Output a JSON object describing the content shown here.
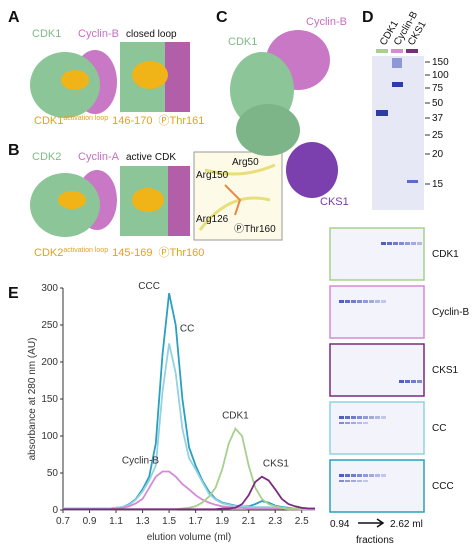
{
  "figure": {
    "panel_a": {
      "label": "A",
      "cdk": "CDK1",
      "cyclin": "Cyclin-B",
      "inset_title": "closed loop",
      "loop_protein": "CDK1",
      "loop_superscript": "activation loop",
      "loop_range": "146-170",
      "phosphosite": "ⓅThr161"
    },
    "panel_b": {
      "label": "B",
      "cdk": "CDK2",
      "cyclin": "Cyclin-A",
      "inset_title": "active CDK",
      "loop_protein": "CDK2",
      "loop_superscript": "activation loop",
      "loop_range": "145-169",
      "phosphosite": "ⓅThr160",
      "detail_labels": [
        "Arg50",
        "Arg150",
        "Arg126",
        "ⓅThr160"
      ]
    },
    "panel_c": {
      "label": "C",
      "cdk": "CDK1",
      "cyclin": "Cyclin-B",
      "cks": "CKS1"
    },
    "panel_d": {
      "label": "D",
      "lanes": [
        "CDK1",
        "Cyclin-B",
        "CKS1"
      ],
      "markers": [
        150,
        100,
        75,
        50,
        37,
        25,
        20,
        15
      ]
    },
    "panel_e": {
      "label": "E",
      "gel_labels": [
        "CDK1",
        "Cyclin-B",
        "CKS1",
        "CC",
        "CCC"
      ],
      "fraction_start": "0.94",
      "fraction_end": "2.62 ml",
      "fraction_axis": "fractions"
    }
  },
  "chart_data": {
    "type": "line",
    "xlabel": "elution volume (ml)",
    "ylabel": "absorbance at 280 nm (AU)",
    "x": [
      0.7,
      0.75,
      0.8,
      0.85,
      0.9,
      0.95,
      1.0,
      1.05,
      1.1,
      1.15,
      1.2,
      1.25,
      1.3,
      1.35,
      1.4,
      1.45,
      1.5,
      1.55,
      1.6,
      1.65,
      1.7,
      1.75,
      1.8,
      1.85,
      1.9,
      1.95,
      2.0,
      2.05,
      2.1,
      2.15,
      2.2,
      2.25,
      2.3,
      2.35,
      2.4,
      2.45,
      2.5,
      2.55,
      2.6
    ],
    "series": [
      {
        "name": "CCC",
        "color": "#2a9fc0",
        "values": [
          2,
          2,
          2,
          2,
          2,
          2,
          2,
          2,
          3,
          4,
          8,
          15,
          28,
          45,
          90,
          210,
          293,
          250,
          150,
          85,
          60,
          40,
          25,
          15,
          10,
          8,
          6,
          5,
          5,
          8,
          12,
          10,
          6,
          4,
          3,
          2,
          2,
          2,
          2
        ]
      },
      {
        "name": "CC",
        "color": "#92d2e2",
        "values": [
          2,
          2,
          2,
          2,
          2,
          2,
          2,
          2,
          3,
          4,
          7,
          14,
          25,
          40,
          60,
          160,
          225,
          185,
          110,
          70,
          55,
          38,
          22,
          14,
          9,
          7,
          5,
          5,
          4,
          4,
          4,
          4,
          3,
          3,
          2,
          2,
          2,
          2,
          2
        ]
      },
      {
        "name": "Cyclin-B",
        "color": "#d58ad5",
        "values": [
          1,
          1,
          1,
          1,
          1,
          1,
          1,
          1,
          2,
          3,
          5,
          9,
          15,
          30,
          45,
          52,
          52,
          45,
          35,
          28,
          20,
          14,
          10,
          7,
          5,
          4,
          3,
          3,
          2,
          2,
          2,
          2,
          2,
          2,
          1,
          1,
          1,
          1,
          1
        ]
      },
      {
        "name": "CDK1",
        "color": "#a8d08d",
        "values": [
          1,
          1,
          1,
          1,
          1,
          1,
          1,
          1,
          1,
          1,
          1,
          1,
          1,
          1,
          1,
          1,
          1,
          1,
          2,
          3,
          5,
          10,
          18,
          30,
          55,
          90,
          110,
          100,
          60,
          30,
          15,
          8,
          5,
          3,
          2,
          2,
          1,
          1,
          1
        ]
      },
      {
        "name": "CKS1",
        "color": "#7b2a7f",
        "values": [
          1,
          1,
          1,
          1,
          1,
          1,
          1,
          1,
          1,
          1,
          1,
          1,
          1,
          1,
          1,
          1,
          1,
          1,
          1,
          1,
          1,
          1,
          1,
          1,
          2,
          2,
          3,
          8,
          20,
          38,
          45,
          40,
          28,
          15,
          8,
          5,
          3,
          2,
          2
        ]
      }
    ],
    "xlim": [
      0.7,
      2.6
    ],
    "ylim": [
      0,
      300
    ],
    "xticks": [
      0.7,
      0.9,
      1.1,
      1.3,
      1.5,
      1.7,
      1.9,
      2.1,
      2.3,
      2.5
    ],
    "yticks": [
      0,
      50,
      100,
      150,
      200,
      250,
      300
    ]
  }
}
